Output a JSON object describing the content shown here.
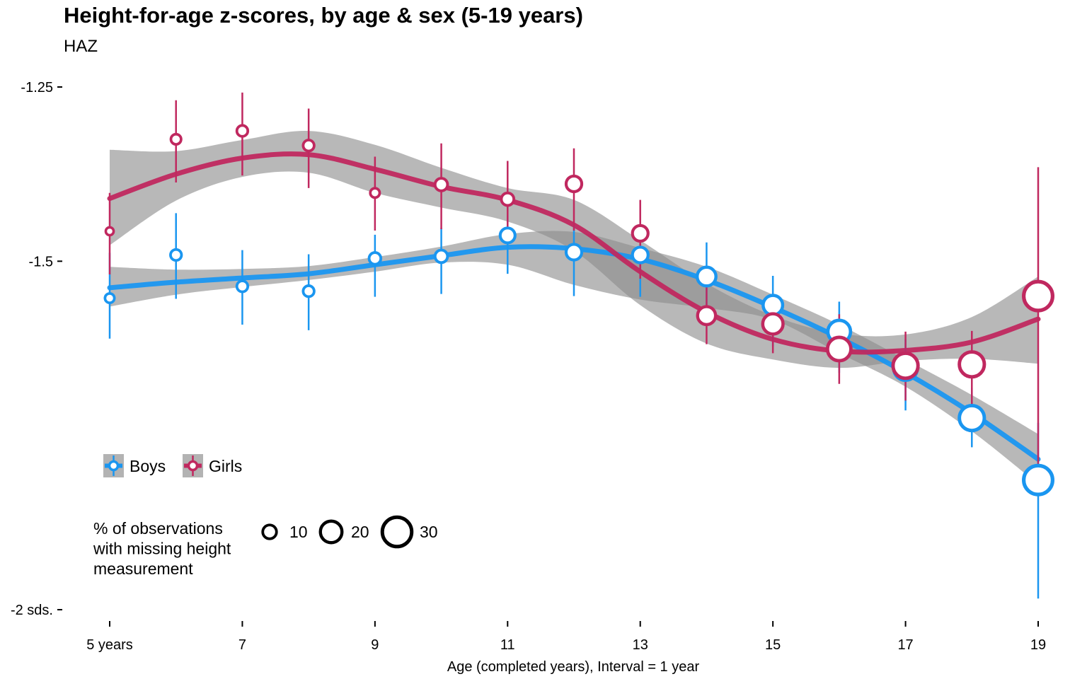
{
  "chart_data": {
    "type": "scatter",
    "title": "Height-for-age z-scores, by age & sex (5-19 years)",
    "subtitle": "HAZ",
    "xlabel": "Age (completed years), Interval = 1 year",
    "ylabel": "",
    "xlim": [
      5,
      19
    ],
    "ylim": [
      -2,
      -1.25
    ],
    "x_ticks": [
      {
        "value": 5,
        "label": "5 years"
      },
      {
        "value": 7,
        "label": "7"
      },
      {
        "value": 9,
        "label": "9"
      },
      {
        "value": 11,
        "label": "11"
      },
      {
        "value": 13,
        "label": "13"
      },
      {
        "value": 15,
        "label": "15"
      },
      {
        "value": 17,
        "label": "17"
      },
      {
        "value": 19,
        "label": "19"
      }
    ],
    "y_ticks": [
      {
        "value": -1.25,
        "label": "-1.25"
      },
      {
        "value": -1.5,
        "label": "-1.5"
      },
      {
        "value": -2,
        "label": "-2 sds."
      }
    ],
    "grid": false,
    "legend_position": "bottom-left",
    "series": [
      {
        "name": "Boys",
        "color": "#1a96f0",
        "x": [
          5,
          6,
          7,
          8,
          9,
          10,
          11,
          12,
          13,
          14,
          15,
          16,
          17,
          18,
          19
        ],
        "y": [
          -1.553,
          -1.491,
          -1.536,
          -1.543,
          -1.496,
          -1.493,
          -1.463,
          -1.487,
          -1.491,
          -1.522,
          -1.563,
          -1.601,
          -1.654,
          -1.725,
          -1.814
        ],
        "ci_low": [
          -1.611,
          -1.554,
          -1.591,
          -1.599,
          -1.551,
          -1.547,
          -1.518,
          -1.55,
          -1.551,
          -1.582,
          -1.622,
          -1.66,
          -1.714,
          -1.767,
          -1.984
        ],
        "ci_high": [
          -1.488,
          -1.431,
          -1.484,
          -1.49,
          -1.462,
          -1.452,
          -1.434,
          -1.449,
          -1.45,
          -1.473,
          -1.521,
          -1.558,
          -1.612,
          -1.682,
          -1.732
        ],
        "missing_pct": [
          8,
          10,
          10,
          10,
          11,
          12,
          15,
          16,
          16,
          20,
          21,
          25,
          26,
          28,
          33
        ],
        "smooth": [
          -1.538,
          -1.53,
          -1.524,
          -1.518,
          -1.505,
          -1.492,
          -1.48,
          -1.482,
          -1.497,
          -1.527,
          -1.566,
          -1.61,
          -1.66,
          -1.718,
          -1.784
        ],
        "smooth_low": [
          -1.508,
          -1.512,
          -1.511,
          -1.507,
          -1.494,
          -1.479,
          -1.461,
          -1.458,
          -1.481,
          -1.508,
          -1.548,
          -1.591,
          -1.641,
          -1.692,
          -1.748
        ],
        "smooth_high": [
          -1.565,
          -1.548,
          -1.537,
          -1.527,
          -1.515,
          -1.502,
          -1.505,
          -1.534,
          -1.555,
          -1.567,
          -1.584,
          -1.632,
          -1.68,
          -1.744,
          -1.82
        ]
      },
      {
        "name": "Girls",
        "color": "#c0285f",
        "x": [
          5,
          6,
          7,
          8,
          9,
          10,
          11,
          12,
          13,
          14,
          15,
          16,
          17,
          18,
          19
        ],
        "y": [
          -1.457,
          -1.325,
          -1.313,
          -1.334,
          -1.402,
          -1.39,
          -1.411,
          -1.389,
          -1.46,
          -1.578,
          -1.59,
          -1.626,
          -1.65,
          -1.648,
          -1.55
        ],
        "ci_low": [
          -1.519,
          -1.387,
          -1.377,
          -1.395,
          -1.456,
          -1.454,
          -1.474,
          -1.456,
          -1.525,
          -1.619,
          -1.632,
          -1.676,
          -1.7,
          -1.705,
          -1.796
        ],
        "ci_high": [
          -1.402,
          -1.269,
          -1.258,
          -1.281,
          -1.35,
          -1.331,
          -1.356,
          -1.338,
          -1.412,
          -1.534,
          -1.554,
          -1.576,
          -1.601,
          -1.6,
          -1.365
        ],
        "missing_pct": [
          6,
          9,
          10,
          10,
          8,
          12,
          12,
          16,
          16,
          19,
          22,
          26,
          28,
          28,
          33
        ],
        "smooth": [
          -1.41,
          -1.375,
          -1.352,
          -1.347,
          -1.368,
          -1.393,
          -1.412,
          -1.448,
          -1.515,
          -1.573,
          -1.612,
          -1.629,
          -1.628,
          -1.616,
          -1.583
        ],
        "smooth_low": [
          -1.34,
          -1.342,
          -1.326,
          -1.313,
          -1.333,
          -1.366,
          -1.395,
          -1.412,
          -1.47,
          -1.532,
          -1.578,
          -1.604,
          -1.605,
          -1.58,
          -1.522
        ],
        "smooth_high": [
          -1.477,
          -1.413,
          -1.379,
          -1.373,
          -1.402,
          -1.423,
          -1.443,
          -1.485,
          -1.563,
          -1.618,
          -1.641,
          -1.653,
          -1.643,
          -1.64,
          -1.647
        ]
      }
    ],
    "legend": {
      "sex_entries": [
        "Boys",
        "Girls"
      ],
      "size_title_lines": [
        "% of observations",
        "with missing height",
        "measurement"
      ],
      "size_entries": [
        10,
        20,
        30
      ]
    }
  }
}
